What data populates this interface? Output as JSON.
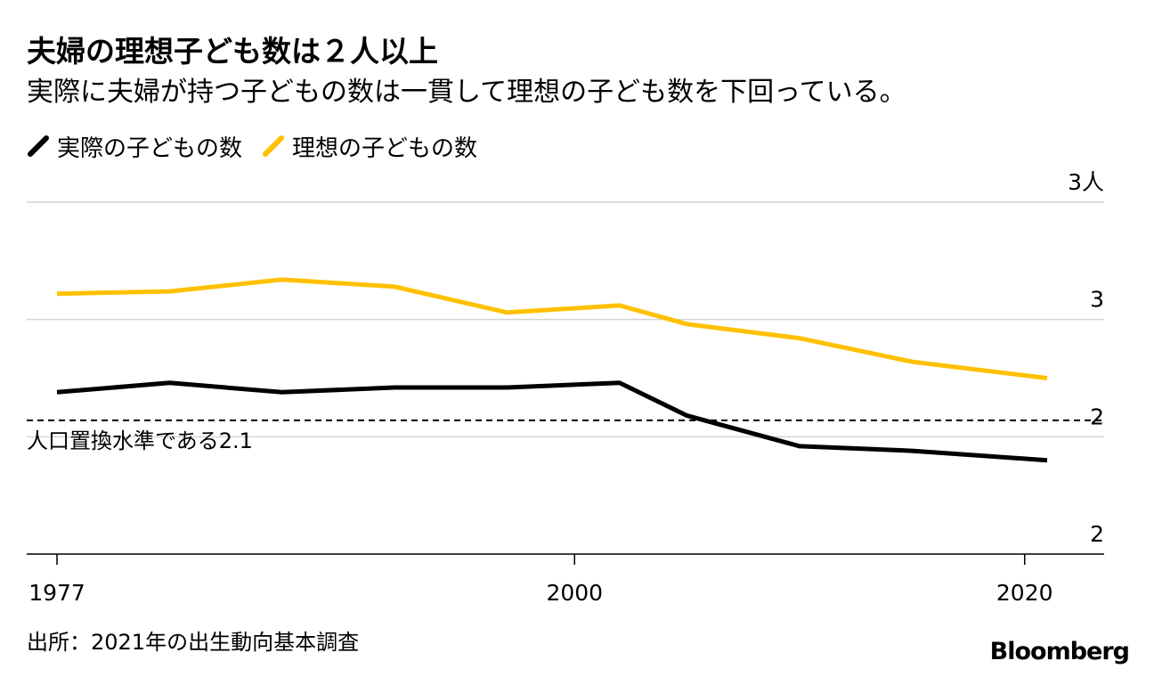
{
  "header": {
    "title": "夫婦の理想子ども数は２人以上",
    "subtitle": "実際に夫婦が持つ子どもの数は一貫して理想の子ども数を下回っている。"
  },
  "legend": {
    "items": [
      {
        "label": "実際の子どもの数",
        "color": "#000000"
      },
      {
        "label": "理想の子どもの数",
        "color": "#FFC000"
      }
    ]
  },
  "footer": {
    "source": "出所：2021年の出生動向基本調査",
    "brand": "Bloomberg"
  },
  "chart_data": {
    "type": "line",
    "title": "夫婦の理想子ども数は２人以上",
    "subtitle": "実際に夫婦が持つ子どもの数は一貫して理想の子ども数を下回っている。",
    "xlabel": "",
    "ylabel": "",
    "x_ticks": [
      1977,
      2000,
      2020
    ],
    "y_ticks": [
      {
        "value": 3.0,
        "label": "3人"
      },
      {
        "value": 2.5,
        "label": "3"
      },
      {
        "value": 2.0,
        "label": "2"
      },
      {
        "value": 1.5,
        "label": "2"
      }
    ],
    "ylim": [
      1.5,
      3.0
    ],
    "grid": true,
    "series": [
      {
        "name": "理想の子どもの数",
        "color": "#FFC000",
        "x": [
          1977,
          1982,
          1987,
          1992,
          1997,
          2002,
          2005,
          2010,
          2015,
          2021
        ],
        "values": [
          2.61,
          2.62,
          2.67,
          2.64,
          2.53,
          2.56,
          2.48,
          2.42,
          2.32,
          2.25
        ]
      },
      {
        "name": "実際の子どもの数",
        "color": "#000000",
        "x": [
          1977,
          1982,
          1987,
          1992,
          1997,
          2002,
          2005,
          2010,
          2015,
          2021
        ],
        "values": [
          2.19,
          2.23,
          2.19,
          2.21,
          2.21,
          2.23,
          2.09,
          1.96,
          1.94,
          1.9
        ]
      }
    ],
    "reference_line": {
      "value": 2.07,
      "label": "人口置換水準である2.1",
      "style": "dashed"
    },
    "legend_position": "top-left"
  }
}
